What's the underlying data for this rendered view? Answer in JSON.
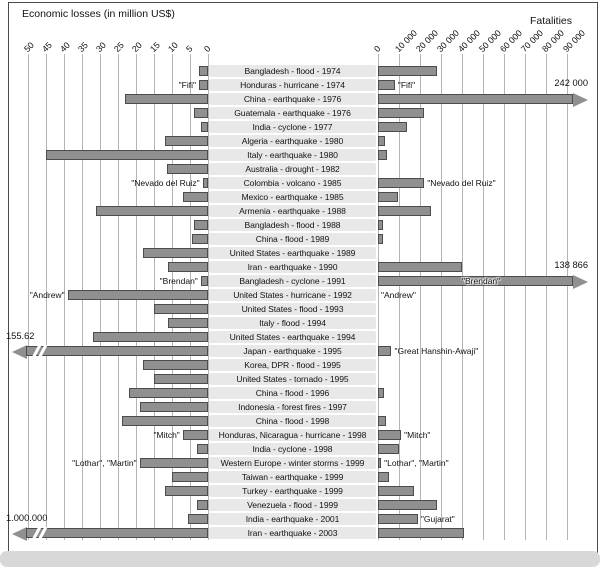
{
  "colors": {
    "bar": "#909090",
    "bar_border": "#4c4c4c",
    "grid": "#b4b4b4",
    "row_strip": "#e8e8e8",
    "text": "#111111"
  },
  "chart_data": {
    "type": "bar",
    "subtype": "butterfly-tornado",
    "title": "",
    "left": {
      "label": "Economic losses (in million US$)",
      "ticks": [
        "50",
        "45",
        "40",
        "35",
        "30",
        "25",
        "20",
        "15",
        "10",
        "5",
        "0"
      ],
      "max": 50,
      "direction": "leftward",
      "grid": true
    },
    "right": {
      "label": "Fatalities",
      "ticks": [
        "0",
        "10 000",
        "20 000",
        "30 000",
        "40 000",
        "50 000",
        "60 000",
        "70 000",
        "80 000",
        "90 000"
      ],
      "max": 90000,
      "direction": "rightward",
      "grid": true
    },
    "rows": [
      {
        "category": "Bangladesh - flood - 1974",
        "economic_losses": 2.5,
        "fatalities": 28000
      },
      {
        "category": "Honduras - hurricane - 1974",
        "economic_losses": 2.5,
        "fatalities": 8000,
        "econ_note": "\"Fifi\"",
        "fat_note": "\"Fifi\""
      },
      {
        "category": "China - earthquake - 1976",
        "economic_losses": 23,
        "fatalities": 242000,
        "fat_arrow": true,
        "fat_label": "242 000"
      },
      {
        "category": "Guatemala - earthquake - 1976",
        "economic_losses": 4,
        "fatalities": 22000
      },
      {
        "category": "India - cyclone - 1977",
        "economic_losses": 2,
        "fatalities": 14000
      },
      {
        "category": "Algeria - earthquake - 1980",
        "economic_losses": 12,
        "fatalities": 3500
      },
      {
        "category": "Italy - earthquake - 1980",
        "economic_losses": 45,
        "fatalities": 4500
      },
      {
        "category": "Australia - drought - 1982",
        "economic_losses": 11.5,
        "fatalities": 0
      },
      {
        "category": "Colombia - volcano - 1985",
        "economic_losses": 1.5,
        "fatalities": 22000,
        "econ_note": "\"Nevado del Ruiz\"",
        "fat_note": "\"Nevado del Ruiz\""
      },
      {
        "category": "Mexico - earthquake - 1985",
        "economic_losses": 7,
        "fatalities": 9500
      },
      {
        "category": "Armenia -  earthquake - 1988",
        "economic_losses": 31,
        "fatalities": 25000
      },
      {
        "category": "Bangladesh - flood - 1988",
        "economic_losses": 4,
        "fatalities": 2500
      },
      {
        "category": "China - flood - 1989",
        "economic_losses": 4.5,
        "fatalities": 2500
      },
      {
        "category": "United States - earthquake - 1989",
        "economic_losses": 18,
        "fatalities": 0
      },
      {
        "category": "Iran - earthquake - 1990",
        "economic_losses": 11,
        "fatalities": 40000
      },
      {
        "category": "Bangladesh - cyclone - 1991",
        "economic_losses": 2,
        "fatalities": 138866,
        "fat_arrow": true,
        "fat_label": "138 866",
        "econ_note": "\"Brendan\"",
        "fat_note": "\"Brendan\""
      },
      {
        "category": "United States - hurricane - 1992",
        "economic_losses": 39,
        "fatalities": 0,
        "econ_note": "\"Andrew\"",
        "fat_note": "\"Andrew\""
      },
      {
        "category": "United States - flood - 1993",
        "economic_losses": 15,
        "fatalities": 0
      },
      {
        "category": "Italy - flood - 1994",
        "economic_losses": 11,
        "fatalities": 0
      },
      {
        "category": "United States - earthquake - 1994",
        "economic_losses": 32,
        "fatalities": 0
      },
      {
        "category": "Japan - earthquake - 1995",
        "economic_losses": null,
        "econ_arrow": true,
        "econ_label": "155.62",
        "fatalities": 6400,
        "fat_note": "\"Great Hanshin-Awaji\""
      },
      {
        "category": "Korea, DPR - flood - 1995",
        "economic_losses": 18,
        "fatalities": 0
      },
      {
        "category": "United States - tornado - 1995",
        "economic_losses": 15,
        "fatalities": 0
      },
      {
        "category": "China - flood - 1996",
        "economic_losses": 22,
        "fatalities": 3000
      },
      {
        "category": "Indonesia - forest fires - 1997",
        "economic_losses": 19,
        "fatalities": 0
      },
      {
        "category": "China - flood - 1998",
        "economic_losses": 24,
        "fatalities": 4000
      },
      {
        "category": "Honduras, Nicaragua - hurricane - 1998",
        "economic_losses": 7,
        "fatalities": 11000,
        "econ_note": "\"Mitch\"",
        "fat_note": "\"Mitch\""
      },
      {
        "category": "India - cyclone - 1998",
        "economic_losses": 3,
        "fatalities": 10000
      },
      {
        "category": "Western Europe - winter storms - 1999",
        "economic_losses": 19,
        "fatalities": 1500,
        "econ_note": "\"Lothar\", \"Martin\"",
        "fat_note": "\"Lothar\", \"Martin\""
      },
      {
        "category": "Taiwan  - earthquake - 1999",
        "economic_losses": 10,
        "fatalities": 5000
      },
      {
        "category": "Turkey - earthquake - 1999",
        "economic_losses": 12,
        "fatalities": 17000
      },
      {
        "category": "Venezuela - flood - 1999",
        "economic_losses": 3,
        "fatalities": 28000
      },
      {
        "category": "India - earthquake - 2001",
        "economic_losses": 5.5,
        "fatalities": 19000,
        "fat_note": "\"Gujarat\""
      },
      {
        "category": "Iran - earthquake - 2003",
        "economic_losses": null,
        "econ_arrow": true,
        "econ_label": "1.000.000",
        "fatalities": 41000
      }
    ]
  }
}
